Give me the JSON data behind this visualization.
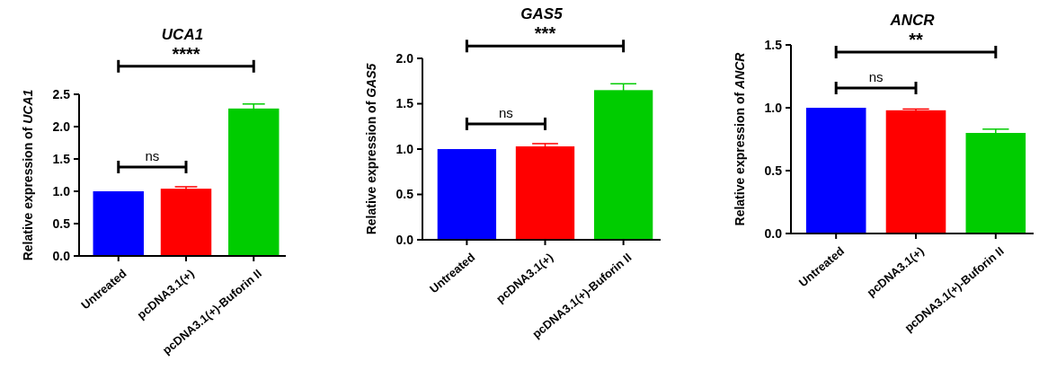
{
  "chart_data": [
    {
      "type": "bar",
      "title": "UCA1",
      "ylabel": "Relative expression of UCA1",
      "categories": [
        "Untreated",
        "pcDNA3.1(+)",
        "pcDNA3.1(+)-Buforin II"
      ],
      "values": [
        1.0,
        1.04,
        2.28
      ],
      "errors": [
        null,
        0.03,
        0.07
      ],
      "colors": [
        "#0000ff",
        "#ff0000",
        "#00cc00"
      ],
      "ylim": [
        0,
        2.5
      ],
      "yticks": [
        {
          "value": 0,
          "label": "0.0"
        },
        {
          "value": 0.5,
          "label": "0.5"
        },
        {
          "value": 1,
          "label": "1.0"
        },
        {
          "value": 1.5,
          "label": "1.5"
        },
        {
          "value": 2,
          "label": "2.0"
        },
        {
          "value": 2.5,
          "label": "2.5"
        }
      ],
      "annotations": [
        "ns",
        "****"
      ]
    },
    {
      "type": "bar",
      "title": "GAS5",
      "ylabel": "Relative expression of GAS5",
      "categories": [
        "Untreated",
        "pcDNA3.1(+)",
        "pcDNA3.1(+)-Buforin II"
      ],
      "values": [
        1.0,
        1.03,
        1.65
      ],
      "errors": [
        null,
        0.03,
        0.07
      ],
      "colors": [
        "#0000ff",
        "#ff0000",
        "#00cc00"
      ],
      "ylim": [
        0,
        2.0
      ],
      "yticks": [
        {
          "value": 0,
          "label": "0.0"
        },
        {
          "value": 0.5,
          "label": "0.5"
        },
        {
          "value": 1,
          "label": "1.0"
        },
        {
          "value": 1.5,
          "label": "1.5"
        },
        {
          "value": 2,
          "label": "2.0"
        }
      ],
      "annotations": [
        "ns",
        "***"
      ]
    },
    {
      "type": "bar",
      "title": "ANCR",
      "ylabel": "Relative expression of ANCR",
      "categories": [
        "Untreated",
        "pcDNA3.1(+)",
        "pcDNA3.1(+)-Buforin II"
      ],
      "values": [
        1.0,
        0.98,
        0.8
      ],
      "errors": [
        null,
        0.01,
        0.03
      ],
      "colors": [
        "#0000ff",
        "#ff0000",
        "#00cc00"
      ],
      "ylim": [
        0,
        1.5
      ],
      "yticks": [
        {
          "value": 0,
          "label": "0.0"
        },
        {
          "value": 0.5,
          "label": "0.5"
        },
        {
          "value": 1,
          "label": "1.0"
        },
        {
          "value": 1.5,
          "label": "1.5"
        }
      ],
      "annotations": [
        "ns",
        "**"
      ]
    }
  ]
}
